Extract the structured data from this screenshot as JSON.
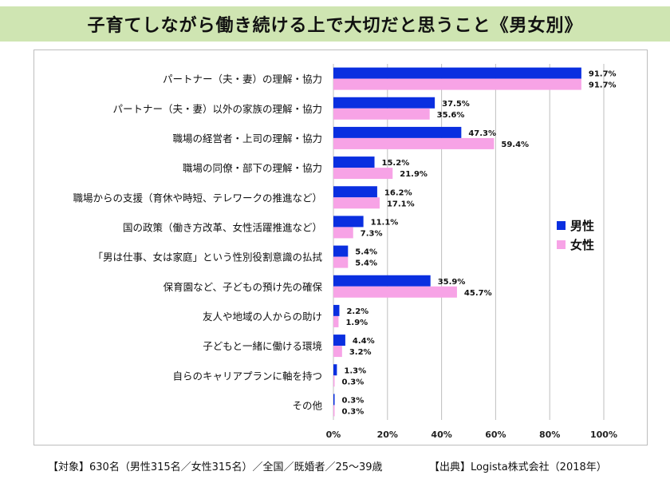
{
  "title": "子育てしながら働き続ける上で大切だと思うこと《男女別》",
  "footer": {
    "target": "【対象】630名（男性315名／女性315名）／全国／既婚者／25〜39歳",
    "source": "【出典】Logista株式会社（2018年）"
  },
  "colors": {
    "male": "#0a2fe0",
    "female": "#f7a3e6",
    "grid": "#bfbfbf"
  },
  "chart_data": {
    "type": "bar",
    "orientation": "horizontal",
    "categories": [
      "パートナー（夫・妻）の理解・協力",
      "パートナー（夫・妻）以外の家族の理解・協力",
      "職場の経営者・上司の理解・協力",
      "職場の同僚・部下の理解・協力",
      "職場からの支援（育休や時短、テレワークの推進など）",
      "国の政策（働き方改革、女性活躍推進など）",
      "「男は仕事、女は家庭」という性別役割意識の払拭",
      "保育園など、子どもの預け先の確保",
      "友人や地域の人からの助け",
      "子どもと一緒に働ける環境",
      "自らのキャリアプランに軸を持つ",
      "その他"
    ],
    "series": [
      {
        "name": "男性",
        "values": [
          91.7,
          37.5,
          47.3,
          15.2,
          16.2,
          11.1,
          5.4,
          35.9,
          2.2,
          4.4,
          1.3,
          0.3
        ]
      },
      {
        "name": "女性",
        "values": [
          91.7,
          35.6,
          59.4,
          21.9,
          17.1,
          7.3,
          5.4,
          45.7,
          1.9,
          3.2,
          0.3,
          0.3
        ]
      }
    ],
    "value_labels": [
      [
        "91.7%",
        "37.5%",
        "47.3%",
        "15.2%",
        "16.2%",
        "11.1%",
        "5.4%",
        "35.9%",
        "2.2%",
        "4.4%",
        "1.3%",
        "0.3%"
      ],
      [
        "91.7%",
        "35.6%",
        "59.4%",
        "21.9%",
        "17.1%",
        "7.3%",
        "5.4%",
        "45.7%",
        "1.9%",
        "3.2%",
        "0.3%",
        "0.3%"
      ]
    ],
    "xlim": [
      0,
      100
    ],
    "xticks": [
      0,
      20,
      40,
      60,
      80,
      100
    ],
    "xtick_labels": [
      "0%",
      "20%",
      "40%",
      "60%",
      "80%",
      "100%"
    ],
    "grid": "vertical",
    "legend_position": "right"
  }
}
